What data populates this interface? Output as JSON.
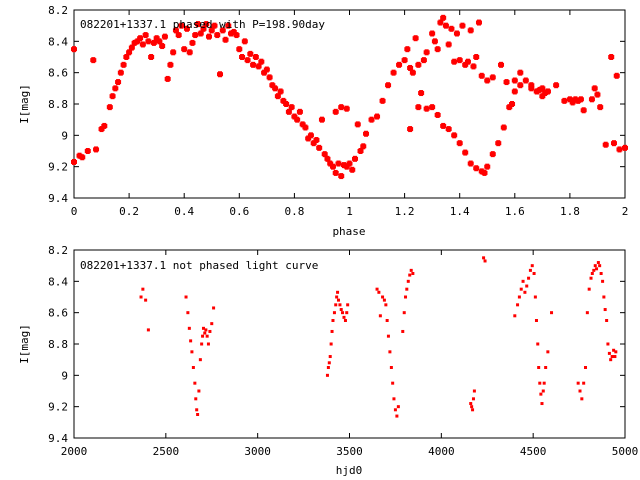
{
  "chart_data": [
    {
      "type": "scatter",
      "title": "082201+1337.1 phased with P=198.90day",
      "xlabel": "phase",
      "ylabel": "I[mag]",
      "xlim": [
        0,
        2
      ],
      "ylim": [
        9.4,
        8.2
      ],
      "y_inverted": true,
      "xticks": [
        "0",
        "0.2",
        "0.4",
        "0.6",
        "0.8",
        "1",
        "1.2",
        "1.4",
        "1.6",
        "1.8",
        "2"
      ],
      "yticks": [
        "8.2",
        "8.4",
        "8.6",
        "8.8",
        "9",
        "9.2",
        "9.4"
      ],
      "marker": "filled-square-cross",
      "color": "#ff0000",
      "grid": false,
      "points": [
        [
          0.0,
          8.45
        ],
        [
          0.0,
          9.17
        ],
        [
          0.02,
          9.13
        ],
        [
          0.03,
          9.14
        ],
        [
          0.05,
          9.1
        ],
        [
          0.07,
          8.52
        ],
        [
          0.08,
          9.09
        ],
        [
          0.1,
          8.96
        ],
        [
          0.11,
          8.94
        ],
        [
          0.13,
          8.82
        ],
        [
          0.14,
          8.75
        ],
        [
          0.15,
          8.7
        ],
        [
          0.16,
          8.66
        ],
        [
          0.17,
          8.6
        ],
        [
          0.18,
          8.55
        ],
        [
          0.19,
          8.5
        ],
        [
          0.2,
          8.47
        ],
        [
          0.21,
          8.44
        ],
        [
          0.22,
          8.41
        ],
        [
          0.23,
          8.4
        ],
        [
          0.24,
          8.38
        ],
        [
          0.25,
          8.42
        ],
        [
          0.26,
          8.36
        ],
        [
          0.27,
          8.4
        ],
        [
          0.28,
          8.5
        ],
        [
          0.29,
          8.41
        ],
        [
          0.3,
          8.38
        ],
        [
          0.31,
          8.4
        ],
        [
          0.32,
          8.43
        ],
        [
          0.33,
          8.37
        ],
        [
          0.34,
          8.64
        ],
        [
          0.35,
          8.55
        ],
        [
          0.36,
          8.47
        ],
        [
          0.37,
          8.33
        ],
        [
          0.38,
          8.36
        ],
        [
          0.39,
          8.3
        ],
        [
          0.4,
          8.45
        ],
        [
          0.41,
          8.32
        ],
        [
          0.42,
          8.47
        ],
        [
          0.43,
          8.41
        ],
        [
          0.44,
          8.36
        ],
        [
          0.45,
          8.29
        ],
        [
          0.46,
          8.35
        ],
        [
          0.47,
          8.32
        ],
        [
          0.48,
          8.29
        ],
        [
          0.49,
          8.37
        ],
        [
          0.5,
          8.33
        ],
        [
          0.51,
          8.3
        ],
        [
          0.52,
          8.36
        ],
        [
          0.53,
          8.61
        ],
        [
          0.54,
          8.33
        ],
        [
          0.55,
          8.39
        ],
        [
          0.56,
          8.3
        ],
        [
          0.57,
          8.35
        ],
        [
          0.58,
          8.34
        ],
        [
          0.59,
          8.36
        ],
        [
          0.6,
          8.45
        ],
        [
          0.61,
          8.5
        ],
        [
          0.62,
          8.4
        ],
        [
          0.63,
          8.52
        ],
        [
          0.64,
          8.48
        ],
        [
          0.65,
          8.55
        ],
        [
          0.66,
          8.5
        ],
        [
          0.67,
          8.56
        ],
        [
          0.68,
          8.53
        ],
        [
          0.69,
          8.6
        ],
        [
          0.7,
          8.58
        ],
        [
          0.71,
          8.63
        ],
        [
          0.72,
          8.68
        ],
        [
          0.73,
          8.7
        ],
        [
          0.74,
          8.75
        ],
        [
          0.75,
          8.72
        ],
        [
          0.76,
          8.78
        ],
        [
          0.77,
          8.8
        ],
        [
          0.78,
          8.85
        ],
        [
          0.79,
          8.82
        ],
        [
          0.8,
          8.88
        ],
        [
          0.81,
          8.9
        ],
        [
          0.82,
          8.85
        ],
        [
          0.83,
          8.93
        ],
        [
          0.84,
          8.95
        ],
        [
          0.85,
          9.02
        ],
        [
          0.86,
          9.0
        ],
        [
          0.87,
          9.05
        ],
        [
          0.88,
          9.03
        ],
        [
          0.89,
          9.08
        ],
        [
          0.9,
          8.9
        ],
        [
          0.91,
          9.12
        ],
        [
          0.92,
          9.15
        ],
        [
          0.93,
          9.18
        ],
        [
          0.94,
          9.2
        ],
        [
          0.95,
          8.85
        ],
        [
          0.95,
          9.24
        ],
        [
          0.96,
          9.18
        ],
        [
          0.97,
          8.82
        ],
        [
          0.97,
          9.26
        ],
        [
          0.98,
          9.19
        ],
        [
          0.99,
          8.83
        ],
        [
          0.99,
          9.2
        ],
        [
          1.0,
          9.18
        ],
        [
          1.01,
          9.22
        ],
        [
          1.02,
          9.15
        ],
        [
          1.03,
          8.93
        ],
        [
          1.04,
          9.1
        ],
        [
          1.05,
          9.07
        ],
        [
          1.06,
          8.99
        ],
        [
          1.08,
          8.9
        ],
        [
          1.1,
          8.88
        ],
        [
          1.12,
          8.78
        ],
        [
          1.14,
          8.68
        ],
        [
          1.16,
          8.6
        ],
        [
          1.18,
          8.55
        ],
        [
          1.2,
          8.52
        ],
        [
          1.21,
          8.45
        ],
        [
          1.22,
          8.57
        ],
        [
          1.23,
          8.6
        ],
        [
          1.24,
          8.38
        ],
        [
          1.25,
          8.55
        ],
        [
          1.26,
          8.73
        ],
        [
          1.27,
          8.52
        ],
        [
          1.28,
          8.47
        ],
        [
          1.3,
          8.35
        ],
        [
          1.31,
          8.4
        ],
        [
          1.32,
          8.45
        ],
        [
          1.33,
          8.28
        ],
        [
          1.34,
          8.25
        ],
        [
          1.35,
          8.3
        ],
        [
          1.36,
          8.42
        ],
        [
          1.37,
          8.32
        ],
        [
          1.38,
          8.53
        ],
        [
          1.39,
          8.35
        ],
        [
          1.4,
          8.52
        ],
        [
          1.41,
          8.3
        ],
        [
          1.42,
          8.55
        ],
        [
          1.43,
          8.53
        ],
        [
          1.44,
          8.33
        ],
        [
          1.45,
          8.56
        ],
        [
          1.46,
          8.5
        ],
        [
          1.47,
          8.28
        ],
        [
          1.48,
          8.62
        ],
        [
          1.5,
          8.65
        ],
        [
          1.52,
          8.63
        ],
        [
          1.55,
          8.55
        ],
        [
          1.57,
          8.66
        ],
        [
          1.59,
          8.8
        ],
        [
          1.6,
          8.65
        ],
        [
          1.62,
          8.6
        ],
        [
          1.66,
          8.7
        ],
        [
          1.68,
          8.72
        ],
        [
          1.69,
          8.71
        ],
        [
          1.7,
          8.7
        ],
        [
          1.71,
          8.73
        ],
        [
          1.72,
          8.72
        ],
        [
          1.75,
          8.68
        ],
        [
          1.78,
          8.78
        ],
        [
          1.8,
          8.77
        ],
        [
          1.81,
          8.79
        ],
        [
          1.82,
          8.77
        ],
        [
          1.83,
          8.78
        ],
        [
          1.84,
          8.77
        ],
        [
          1.85,
          8.84
        ],
        [
          1.88,
          8.77
        ],
        [
          1.89,
          8.7
        ],
        [
          1.9,
          8.74
        ],
        [
          1.91,
          8.82
        ],
        [
          1.93,
          9.06
        ],
        [
          1.95,
          8.5
        ],
        [
          1.96,
          9.05
        ],
        [
          1.97,
          8.62
        ],
        [
          1.98,
          9.09
        ],
        [
          2.0,
          9.08
        ],
        [
          1.22,
          8.96
        ],
        [
          1.25,
          8.82
        ],
        [
          1.28,
          8.83
        ],
        [
          1.3,
          8.82
        ],
        [
          1.32,
          8.87
        ],
        [
          1.34,
          8.94
        ],
        [
          1.36,
          8.96
        ],
        [
          1.38,
          9.0
        ],
        [
          1.4,
          9.05
        ],
        [
          1.42,
          9.11
        ],
        [
          1.44,
          9.18
        ],
        [
          1.46,
          9.21
        ],
        [
          1.48,
          9.23
        ],
        [
          1.49,
          9.24
        ],
        [
          1.5,
          9.2
        ],
        [
          1.52,
          9.12
        ],
        [
          1.54,
          9.05
        ],
        [
          1.56,
          8.95
        ],
        [
          1.58,
          8.82
        ],
        [
          1.6,
          8.72
        ],
        [
          1.62,
          8.68
        ],
        [
          1.64,
          8.65
        ],
        [
          1.66,
          8.68
        ],
        [
          1.68,
          8.72
        ],
        [
          1.7,
          8.75
        ],
        [
          1.72,
          8.72
        ]
      ]
    },
    {
      "type": "scatter",
      "title": "082201+1337.1 not phased light curve",
      "xlabel": "hjd0",
      "ylabel": "I[mag]",
      "xlim": [
        2000,
        5000
      ],
      "ylim": [
        9.4,
        8.2
      ],
      "y_inverted": true,
      "xticks": [
        "2000",
        "2500",
        "3000",
        "3500",
        "4000",
        "4500",
        "5000"
      ],
      "yticks": [
        "8.2",
        "8.4",
        "8.6",
        "8.8",
        "9",
        "9.2",
        "9.4"
      ],
      "marker": "small-dot",
      "color": "#ff0000",
      "grid": false,
      "points": [
        [
          2365,
          8.5
        ],
        [
          2375,
          8.45
        ],
        [
          2390,
          8.52
        ],
        [
          2405,
          8.71
        ],
        [
          2610,
          8.5
        ],
        [
          2620,
          8.6
        ],
        [
          2628,
          8.7
        ],
        [
          2635,
          8.78
        ],
        [
          2642,
          8.85
        ],
        [
          2650,
          8.95
        ],
        [
          2658,
          9.05
        ],
        [
          2663,
          9.15
        ],
        [
          2668,
          9.22
        ],
        [
          2673,
          9.25
        ],
        [
          2680,
          9.1
        ],
        [
          2688,
          8.9
        ],
        [
          2695,
          8.8
        ],
        [
          2700,
          8.75
        ],
        [
          2705,
          8.7
        ],
        [
          2712,
          8.73
        ],
        [
          2718,
          8.71
        ],
        [
          2725,
          8.75
        ],
        [
          2732,
          8.8
        ],
        [
          2740,
          8.72
        ],
        [
          2750,
          8.67
        ],
        [
          2760,
          8.57
        ],
        [
          3380,
          9.0
        ],
        [
          3385,
          8.95
        ],
        [
          3390,
          8.92
        ],
        [
          3395,
          8.88
        ],
        [
          3400,
          8.8
        ],
        [
          3405,
          8.72
        ],
        [
          3410,
          8.65
        ],
        [
          3418,
          8.6
        ],
        [
          3425,
          8.55
        ],
        [
          3430,
          8.5
        ],
        [
          3435,
          8.47
        ],
        [
          3440,
          8.52
        ],
        [
          3448,
          8.55
        ],
        [
          3455,
          8.58
        ],
        [
          3462,
          8.6
        ],
        [
          3470,
          8.63
        ],
        [
          3478,
          8.65
        ],
        [
          3485,
          8.6
        ],
        [
          3490,
          8.55
        ],
        [
          3650,
          8.45
        ],
        [
          3660,
          8.47
        ],
        [
          3668,
          8.62
        ],
        [
          3680,
          8.5
        ],
        [
          3690,
          8.52
        ],
        [
          3698,
          8.55
        ],
        [
          3705,
          8.65
        ],
        [
          3712,
          8.75
        ],
        [
          3720,
          8.85
        ],
        [
          3728,
          8.95
        ],
        [
          3735,
          9.05
        ],
        [
          3742,
          9.15
        ],
        [
          3750,
          9.22
        ],
        [
          3758,
          9.26
        ],
        [
          3766,
          9.2
        ],
        [
          3790,
          8.72
        ],
        [
          3798,
          8.6
        ],
        [
          3805,
          8.5
        ],
        [
          3812,
          8.45
        ],
        [
          3820,
          8.4
        ],
        [
          3828,
          8.36
        ],
        [
          3836,
          8.33
        ],
        [
          3845,
          8.35
        ],
        [
          4160,
          9.18
        ],
        [
          4165,
          9.2
        ],
        [
          4170,
          9.22
        ],
        [
          4175,
          9.15
        ],
        [
          4180,
          9.1
        ],
        [
          4230,
          8.25
        ],
        [
          4238,
          8.27
        ],
        [
          4400,
          8.62
        ],
        [
          4415,
          8.55
        ],
        [
          4425,
          8.5
        ],
        [
          4435,
          8.45
        ],
        [
          4445,
          8.4
        ],
        [
          4455,
          8.47
        ],
        [
          4465,
          8.43
        ],
        [
          4475,
          8.38
        ],
        [
          4485,
          8.33
        ],
        [
          4495,
          8.3
        ],
        [
          4505,
          8.35
        ],
        [
          4512,
          8.5
        ],
        [
          4518,
          8.65
        ],
        [
          4525,
          8.8
        ],
        [
          4530,
          8.95
        ],
        [
          4536,
          9.05
        ],
        [
          4542,
          9.12
        ],
        [
          4548,
          9.18
        ],
        [
          4555,
          9.1
        ],
        [
          4560,
          9.05
        ],
        [
          4568,
          8.95
        ],
        [
          4580,
          8.85
        ],
        [
          4600,
          8.6
        ],
        [
          4745,
          9.05
        ],
        [
          4755,
          9.1
        ],
        [
          4765,
          9.15
        ],
        [
          4775,
          9.05
        ],
        [
          4785,
          8.95
        ],
        [
          4795,
          8.6
        ],
        [
          4805,
          8.45
        ],
        [
          4815,
          8.38
        ],
        [
          4822,
          8.35
        ],
        [
          4830,
          8.33
        ],
        [
          4838,
          8.3
        ],
        [
          4845,
          8.32
        ],
        [
          4855,
          8.28
        ],
        [
          4862,
          8.3
        ],
        [
          4870,
          8.35
        ],
        [
          4878,
          8.4
        ],
        [
          4885,
          8.5
        ],
        [
          4892,
          8.58
        ],
        [
          4900,
          8.65
        ],
        [
          4907,
          8.8
        ],
        [
          4915,
          8.86
        ],
        [
          4922,
          8.9
        ],
        [
          4930,
          8.88
        ],
        [
          4938,
          8.84
        ],
        [
          4945,
          8.88
        ],
        [
          4950,
          8.85
        ]
      ]
    }
  ]
}
